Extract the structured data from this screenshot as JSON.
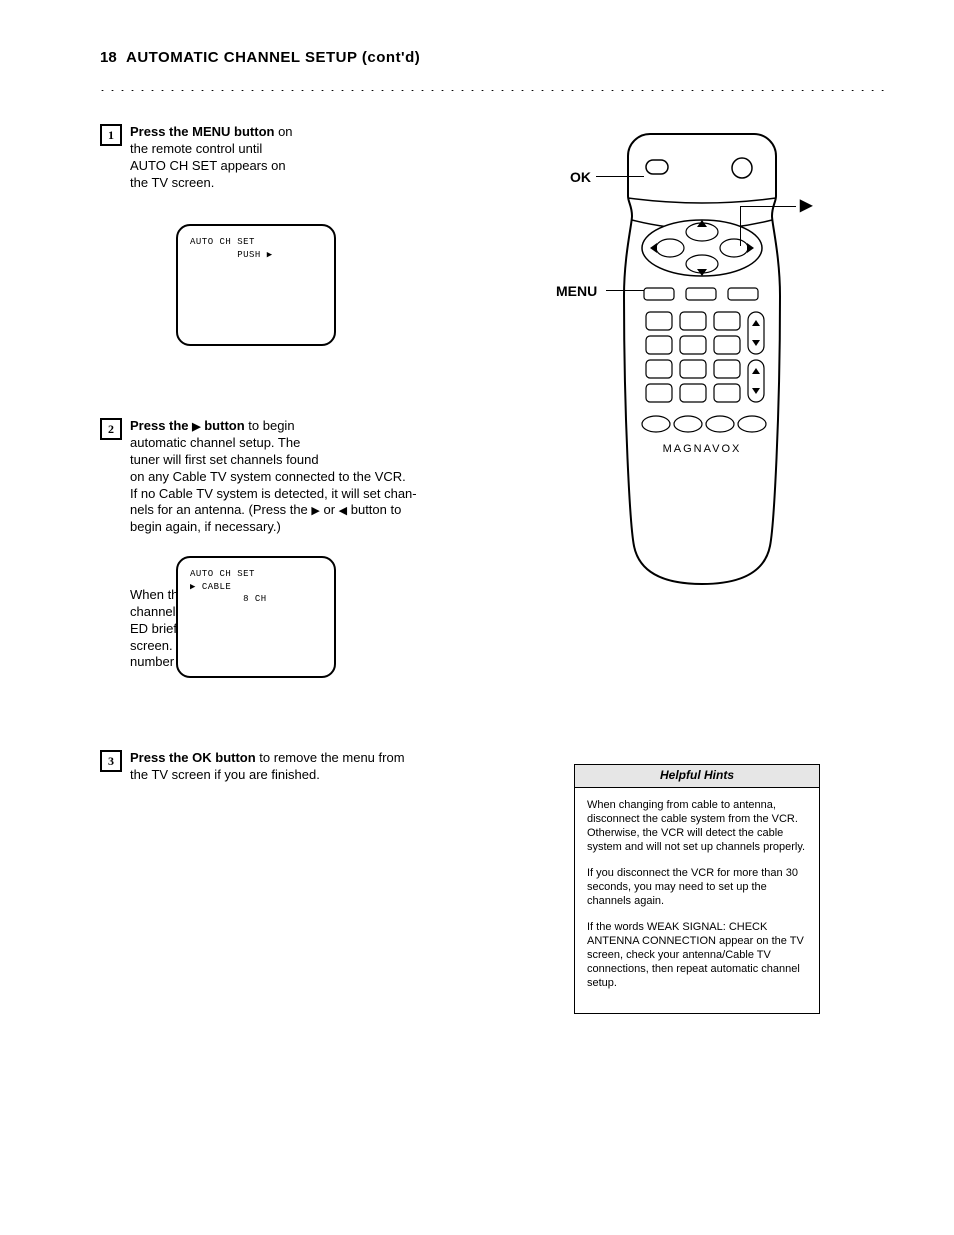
{
  "page_number": "18",
  "title": "AUTOMATIC CHANNEL SETUP (cont'd)",
  "dots": "..................................................................................................................",
  "steps": {
    "s1": {
      "num": "1",
      "lines": [
        "<b>Press the MENU button</b> on",
        "the remote control until",
        "AUTO CH SET appears on",
        "the TV screen."
      ]
    },
    "s2": {
      "num": "2",
      "lines": [
        "<b>Press the <span class='arrow-glyph'>▶</span> button</b> to begin",
        "automatic channel setup. The",
        "tuner will first set channels found",
        "on any Cable TV system connected to the VCR.",
        "If no Cable TV system is detected, it will set chan-",
        "nels for an antenna. (Press the <span class='arrow-glyph'>▶</span> or <span class='arrow-glyph'>◀</span> button to",
        "begin again, if necessary.)",
        "",
        "When the tuner locates the last",
        "channel, SET UP COMPLET-",
        "ED briefly appears on the TV",
        "screen. Then, the lowest channel",
        "number memorized appears."
      ]
    },
    "s3": {
      "num": "3",
      "lines": [
        "<b>Press the OK button</b> to remove the menu from",
        "the TV screen if you are finished."
      ]
    }
  },
  "screen1": {
    "rows": [
      "AUTO CH SET",
      "        PUSH ▶"
    ]
  },
  "screen2": {
    "rows": [
      "AUTO CH SET",
      "▶ CABLE",
      "         8 CH"
    ]
  },
  "remote": {
    "brand": "MAGNAVOX",
    "callout_ok": "OK",
    "callout_triangle": "▶",
    "callout_menu": "MENU"
  },
  "hints": {
    "heading": "Helpful Hints",
    "paragraphs": [
      "When changing from cable to antenna, disconnect the cable system from the VCR. Otherwise, the VCR will detect the cable system and will not set up channels properly.",
      "If you disconnect the VCR for more than 30 seconds, you may need to set up the channels again.",
      "If the words WEAK SIGNAL: CHECK ANTENNA CONNECTION appear on the TV screen, check your antenna/Cable TV connections, then repeat automatic channel setup."
    ]
  },
  "colors": {
    "text": "#000000",
    "background": "#ffffff",
    "hints_header_bg": "#e6e6e6",
    "border": "#000000"
  },
  "typography": {
    "body_fontsize": 13,
    "title_fontsize": 15,
    "hints_fontsize": 11,
    "screen_fontsize": 9,
    "font_family": "Arial"
  }
}
